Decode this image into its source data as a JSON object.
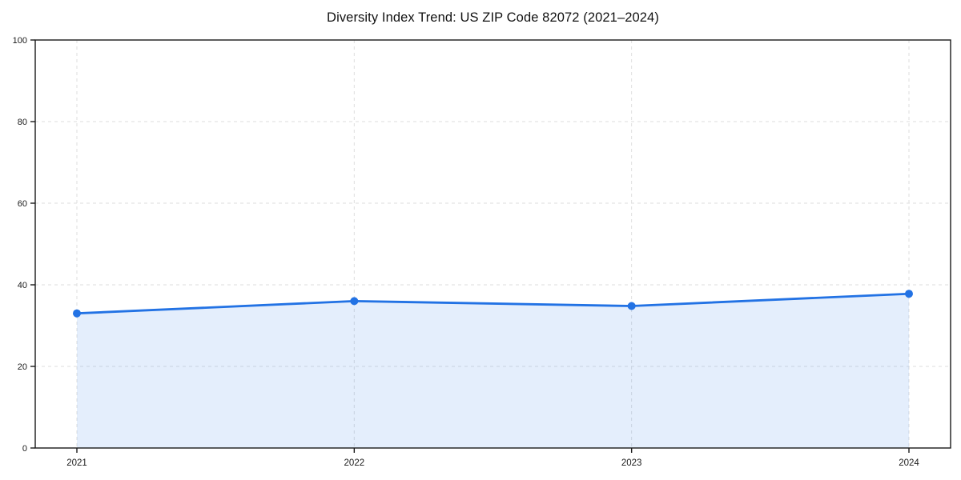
{
  "page": {
    "background": "#ffffff"
  },
  "chart_data": {
    "type": "area",
    "title": "Diversity Index Trend: US ZIP Code 82072 (2021–2024)",
    "categories": [
      "2021",
      "2022",
      "2023",
      "2024"
    ],
    "values": [
      33,
      36,
      34.8,
      37.8
    ],
    "xlabel": "",
    "ylabel": "",
    "ylim": [
      0,
      100
    ],
    "yticks": [
      0,
      20,
      40,
      60,
      80,
      100
    ],
    "ytick_labels": [
      "0",
      "20",
      "40",
      "60",
      "80",
      "100"
    ],
    "grid": true,
    "grid_style": "dashed",
    "legend": "none",
    "line_color": "#2272e4",
    "marker_color": "#2272e4",
    "fill_color": "#2272e4",
    "fill_opacity": 0.12,
    "grid_color": "#dedede",
    "axis_color": "#1a1a1a",
    "tick_label_color": "#1a1a1a"
  }
}
